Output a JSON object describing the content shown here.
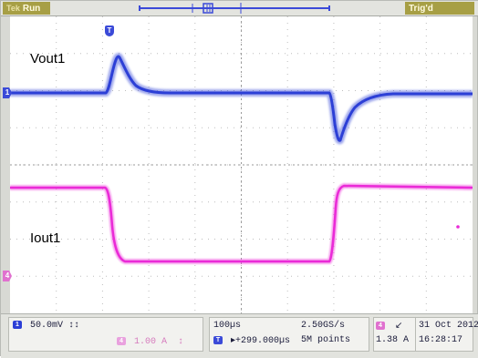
{
  "status": {
    "brand": "Tek",
    "run": "Run",
    "trigger_state": "Trig'd"
  },
  "traces": {
    "ch1_label": "Vout1",
    "ch4_label": "Iout1",
    "ch1_marker": "1",
    "ch4_marker": "4",
    "trigger_marker": "T"
  },
  "readout": {
    "ch1_badge": "1",
    "ch1_scale": "50.0mV",
    "ch1_bw": "↕↕",
    "ch4_badge": "4",
    "ch4_scale": "1.00 A",
    "ch4_bw": "↕",
    "timebase": "100µs",
    "position_badge": "T",
    "position": "▸+299.000µs",
    "sample_rate": "2.50GS/s",
    "record_length": "5M points",
    "trig_badge": "4",
    "trig_slope": "↙",
    "trig_level": "1.38 A",
    "date": "31 Oct  2012",
    "time": "16:28:17"
  },
  "colors": {
    "ch1": "#2c3fd6",
    "ch4": "#ea2ad7",
    "grid": "#8e8e8e",
    "frame": "#d8d9d4",
    "status_box": "#a79f45"
  },
  "icons": {
    "ch1_ground_marker": "channel-1-ground-marker",
    "ch4_ground_marker": "channel-4-ground-marker",
    "trigger_position": "trigger-position-marker"
  }
}
